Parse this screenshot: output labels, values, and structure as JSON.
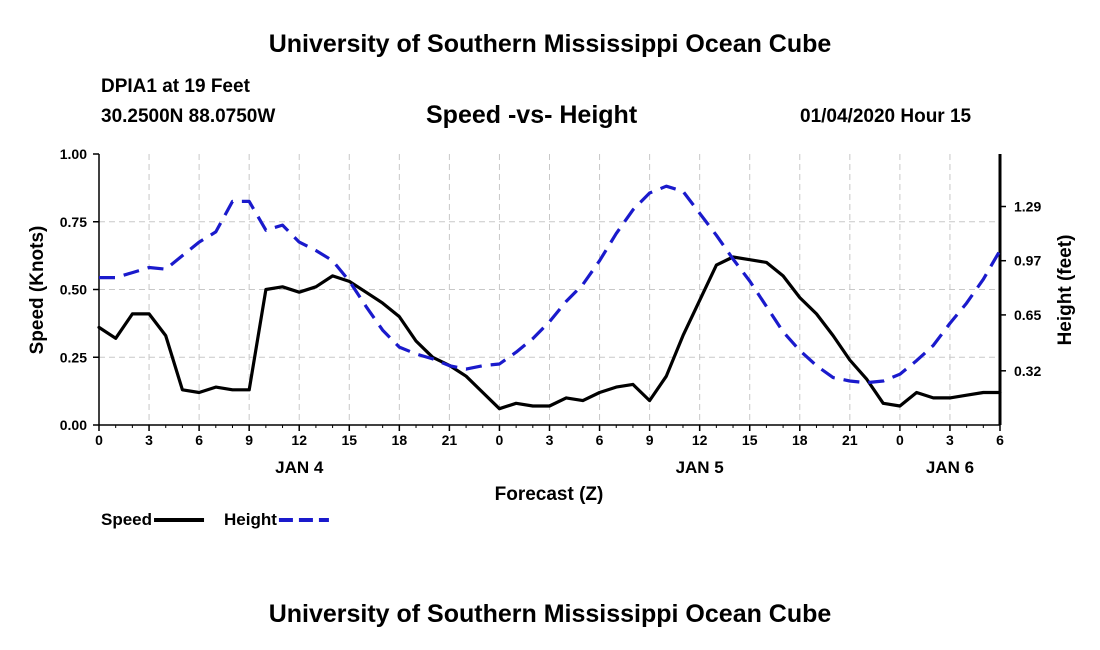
{
  "header": {
    "title": "University of Southern Mississippi Ocean Cube",
    "station": "DPIA1 at 19 Feet",
    "coords": "30.2500N 88.0750W",
    "chart_title": "Speed -vs- Height",
    "datetime": "01/04/2020 Hour 15"
  },
  "footer": {
    "title": "University of Southern Mississippi Ocean Cube"
  },
  "colors": {
    "speed": "#000000",
    "height": "#1a1acc",
    "grid": "#c8c8c8"
  },
  "chart_data": {
    "type": "line",
    "title": "Speed -vs- Height",
    "xlabel": "Forecast (Z)",
    "ylabel": "Speed (Knots)",
    "y2label": "Height (feet)",
    "xlim": [
      0,
      54
    ],
    "ylim": [
      0,
      1
    ],
    "y2lim": [
      0.0,
      1.6
    ],
    "x_ticks": [
      0,
      3,
      6,
      9,
      12,
      15,
      18,
      21,
      24,
      27,
      30,
      33,
      36,
      39,
      42,
      45,
      48,
      51,
      54
    ],
    "x_tick_labels": [
      "0",
      "3",
      "6",
      "9",
      "12",
      "15",
      "18",
      "21",
      "0",
      "3",
      "6",
      "9",
      "12",
      "15",
      "18",
      "21",
      "0",
      "3",
      "6"
    ],
    "y_ticks": [
      0,
      0.25,
      0.5,
      0.75,
      1.0
    ],
    "y_tick_labels": [
      "0.00",
      "0.25",
      "0.50",
      "0.75",
      "1.00"
    ],
    "y2_ticks": [
      0.32,
      0.65,
      0.97,
      1.29
    ],
    "y2_tick_labels": [
      "0.32",
      "0.65",
      "0.97",
      "1.29"
    ],
    "day_labels": [
      {
        "x": 12,
        "label": "JAN 4"
      },
      {
        "x": 36,
        "label": "JAN 5"
      },
      {
        "x": 51,
        "label": "JAN 6"
      }
    ],
    "grid": true,
    "legend_position": "bottom-left",
    "series": [
      {
        "name": "Speed",
        "axis": "left",
        "style": "solid",
        "x": [
          0,
          1,
          2,
          3,
          4,
          5,
          6,
          7,
          8,
          9,
          10,
          11,
          12,
          13,
          14,
          15,
          16,
          17,
          18,
          19,
          20,
          21,
          22,
          23,
          24,
          25,
          26,
          27,
          28,
          29,
          30,
          31,
          32,
          33,
          34,
          35,
          36,
          37,
          38,
          39,
          40,
          41,
          42,
          43,
          44,
          45,
          46,
          47,
          48,
          49,
          50,
          51,
          52,
          53,
          54
        ],
        "values": [
          0.36,
          0.32,
          0.41,
          0.41,
          0.33,
          0.13,
          0.12,
          0.14,
          0.13,
          0.13,
          0.5,
          0.51,
          0.49,
          0.51,
          0.55,
          0.53,
          0.49,
          0.45,
          0.4,
          0.31,
          0.25,
          0.22,
          0.18,
          0.12,
          0.06,
          0.08,
          0.07,
          0.07,
          0.1,
          0.09,
          0.12,
          0.14,
          0.15,
          0.09,
          0.18,
          0.33,
          0.46,
          0.59,
          0.62,
          0.61,
          0.6,
          0.55,
          0.47,
          0.41,
          0.33,
          0.24,
          0.17,
          0.08,
          0.07,
          0.12,
          0.1,
          0.1,
          0.11,
          0.12,
          0.12
        ]
      },
      {
        "name": "Height",
        "axis": "right",
        "style": "dashed",
        "x": [
          0,
          1,
          2,
          3,
          4,
          5,
          6,
          7,
          8,
          9,
          10,
          11,
          12,
          13,
          14,
          15,
          16,
          17,
          18,
          19,
          20,
          21,
          22,
          23,
          24,
          25,
          26,
          27,
          28,
          29,
          30,
          31,
          32,
          33,
          34,
          35,
          36,
          37,
          38,
          39,
          40,
          41,
          42,
          43,
          44,
          45,
          46,
          47,
          48,
          49,
          50,
          51,
          52,
          53,
          54
        ],
        "values": [
          0.87,
          0.87,
          0.9,
          0.93,
          0.92,
          1.0,
          1.08,
          1.14,
          1.32,
          1.32,
          1.15,
          1.18,
          1.08,
          1.03,
          0.97,
          0.85,
          0.7,
          0.56,
          0.46,
          0.42,
          0.39,
          0.35,
          0.33,
          0.35,
          0.36,
          0.43,
          0.51,
          0.61,
          0.73,
          0.83,
          0.97,
          1.13,
          1.27,
          1.37,
          1.41,
          1.38,
          1.25,
          1.12,
          0.98,
          0.85,
          0.7,
          0.55,
          0.44,
          0.35,
          0.28,
          0.26,
          0.25,
          0.26,
          0.3,
          0.38,
          0.47,
          0.6,
          0.72,
          0.86,
          1.03
        ]
      }
    ]
  }
}
